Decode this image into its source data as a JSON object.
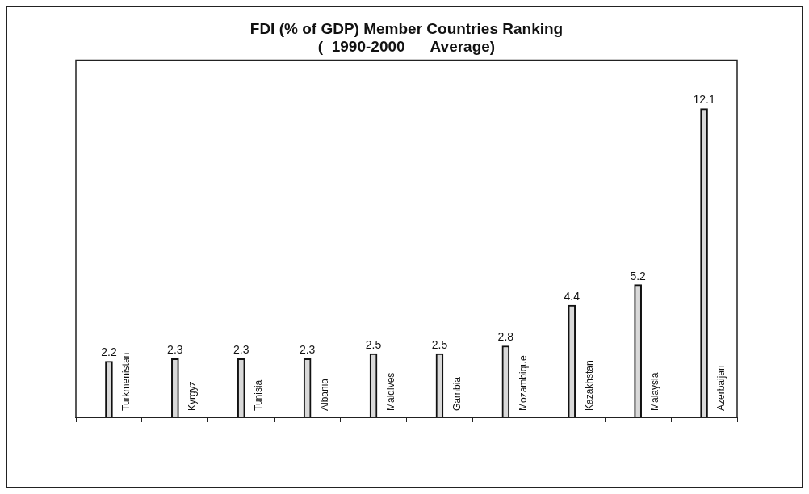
{
  "chart_data": {
    "type": "bar",
    "title": "FDI (% of GDP) Member Countries Ranking",
    "subtitle": "(  1990-2000      Average)",
    "categories": [
      "Turkmenistan",
      "Kyrgyz",
      "Tunisia",
      "Albania",
      "Maldives",
      "Gambia",
      "Mozambique",
      "Kazakhstan",
      "Malaysia",
      "Azerbaijan"
    ],
    "values": [
      2.2,
      2.3,
      2.3,
      2.3,
      2.5,
      2.5,
      2.8,
      4.4,
      5.2,
      12.1
    ],
    "color": "#d9d9d9",
    "data_labels": true,
    "grid": false,
    "legend": false
  }
}
